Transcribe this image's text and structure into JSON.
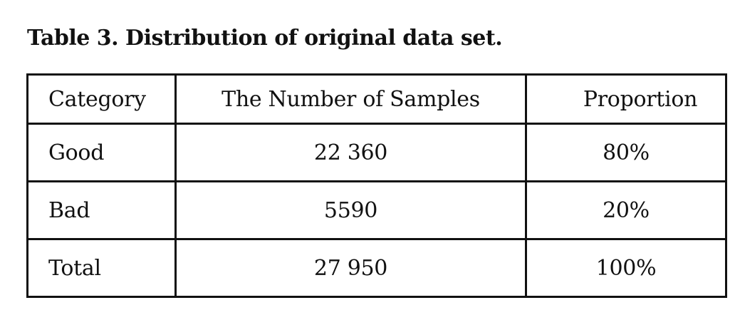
{
  "caption": "Table 3. Distribution of original data set.",
  "table": {
    "headers": [
      "Category",
      "The Number of Samples",
      "Proportion"
    ],
    "rows": [
      [
        "Good",
        "22 360",
        "80%"
      ],
      [
        "Bad",
        "5590",
        "20%"
      ],
      [
        "Total",
        "27 950",
        "100%"
      ]
    ]
  }
}
